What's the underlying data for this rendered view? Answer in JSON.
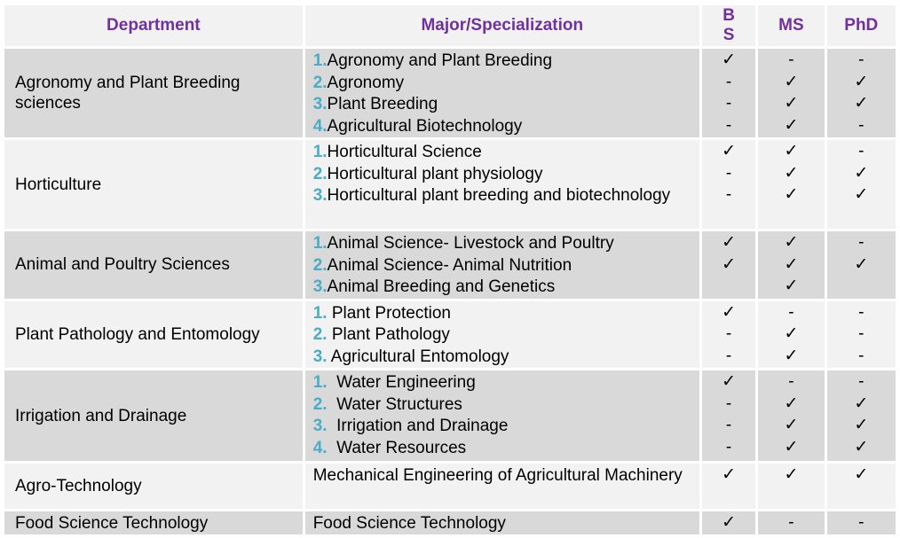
{
  "headers": {
    "department": "Department",
    "major": "Major/Specialization",
    "bs": "B S",
    "bs_line1": "B",
    "bs_line2": "S",
    "ms": "MS",
    "phd": "PhD"
  },
  "rows": [
    {
      "department": "Agronomy and Plant Breeding sciences",
      "majors": [
        {
          "num": "1.",
          "text": "Agronomy and Plant Breeding"
        },
        {
          "num": "2.",
          "text": "Agronomy"
        },
        {
          "num": "3.",
          "text": "Plant Breeding"
        },
        {
          "num": "4.",
          "text": "Agricultural Biotechnology"
        }
      ],
      "bs": [
        "✓",
        "-",
        "-",
        "-"
      ],
      "ms": [
        "-",
        "✓",
        "✓",
        "✓"
      ],
      "phd": [
        "-",
        "✓",
        "✓",
        "-"
      ]
    },
    {
      "department": "Horticulture",
      "majors": [
        {
          "num": "1.",
          "text": "Horticultural Science"
        },
        {
          "num": "2.",
          "text": "Horticultural plant physiology"
        },
        {
          "num": "3.",
          "text": "Horticultural plant breeding and biotechnology"
        }
      ],
      "bs": [
        "✓",
        "-",
        "-"
      ],
      "ms": [
        "✓",
        "✓",
        "✓"
      ],
      "phd": [
        "-",
        "✓",
        "✓"
      ]
    },
    {
      "department": "Animal and Poultry Sciences",
      "majors": [
        {
          "num": "1.",
          "text": "Animal Science- Livestock and Poultry"
        },
        {
          "num": "2.",
          "text": "Animal Science- Animal Nutrition"
        },
        {
          "num": "3.",
          "text": "Animal Breeding and Genetics"
        }
      ],
      "bs": [
        "✓",
        "✓",
        ""
      ],
      "ms": [
        "✓",
        "✓",
        "✓"
      ],
      "phd": [
        "-",
        "✓",
        ""
      ]
    },
    {
      "department": "Plant Pathology and Entomology",
      "majors": [
        {
          "num": "1.",
          "text": " Plant Protection"
        },
        {
          "num": "2.",
          "text": " Plant Pathology"
        },
        {
          "num": "3.",
          "text": " Agricultural Entomology"
        }
      ],
      "bs": [
        "✓",
        "-",
        "-"
      ],
      "ms": [
        "-",
        "✓",
        "✓"
      ],
      "phd": [
        "-",
        "-",
        "-"
      ]
    },
    {
      "department": "Irrigation and Drainage",
      "majors": [
        {
          "num": "1.",
          "text": "  Water Engineering"
        },
        {
          "num": "2.",
          "text": "  Water Structures"
        },
        {
          "num": "3.",
          "text": "  Irrigation and Drainage"
        },
        {
          "num": "4.",
          "text": "  Water Resources"
        }
      ],
      "bs": [
        "✓",
        "-",
        "-",
        "-"
      ],
      "ms": [
        "-",
        "✓",
        "✓",
        "✓"
      ],
      "phd": [
        "-",
        "✓",
        "✓",
        "✓"
      ]
    },
    {
      "department": "Agro-Technology",
      "majors": [
        {
          "num": "",
          "text": "Mechanical Engineering of Agricultural Machinery"
        }
      ],
      "bs": [
        "✓"
      ],
      "ms": [
        "✓"
      ],
      "phd": [
        "✓"
      ]
    },
    {
      "department": "Food Science Technology",
      "majors": [
        {
          "num": "",
          "text": "Food Science Technology"
        }
      ],
      "bs": [
        "✓"
      ],
      "ms": [
        "-"
      ],
      "phd": [
        "-"
      ]
    }
  ]
}
